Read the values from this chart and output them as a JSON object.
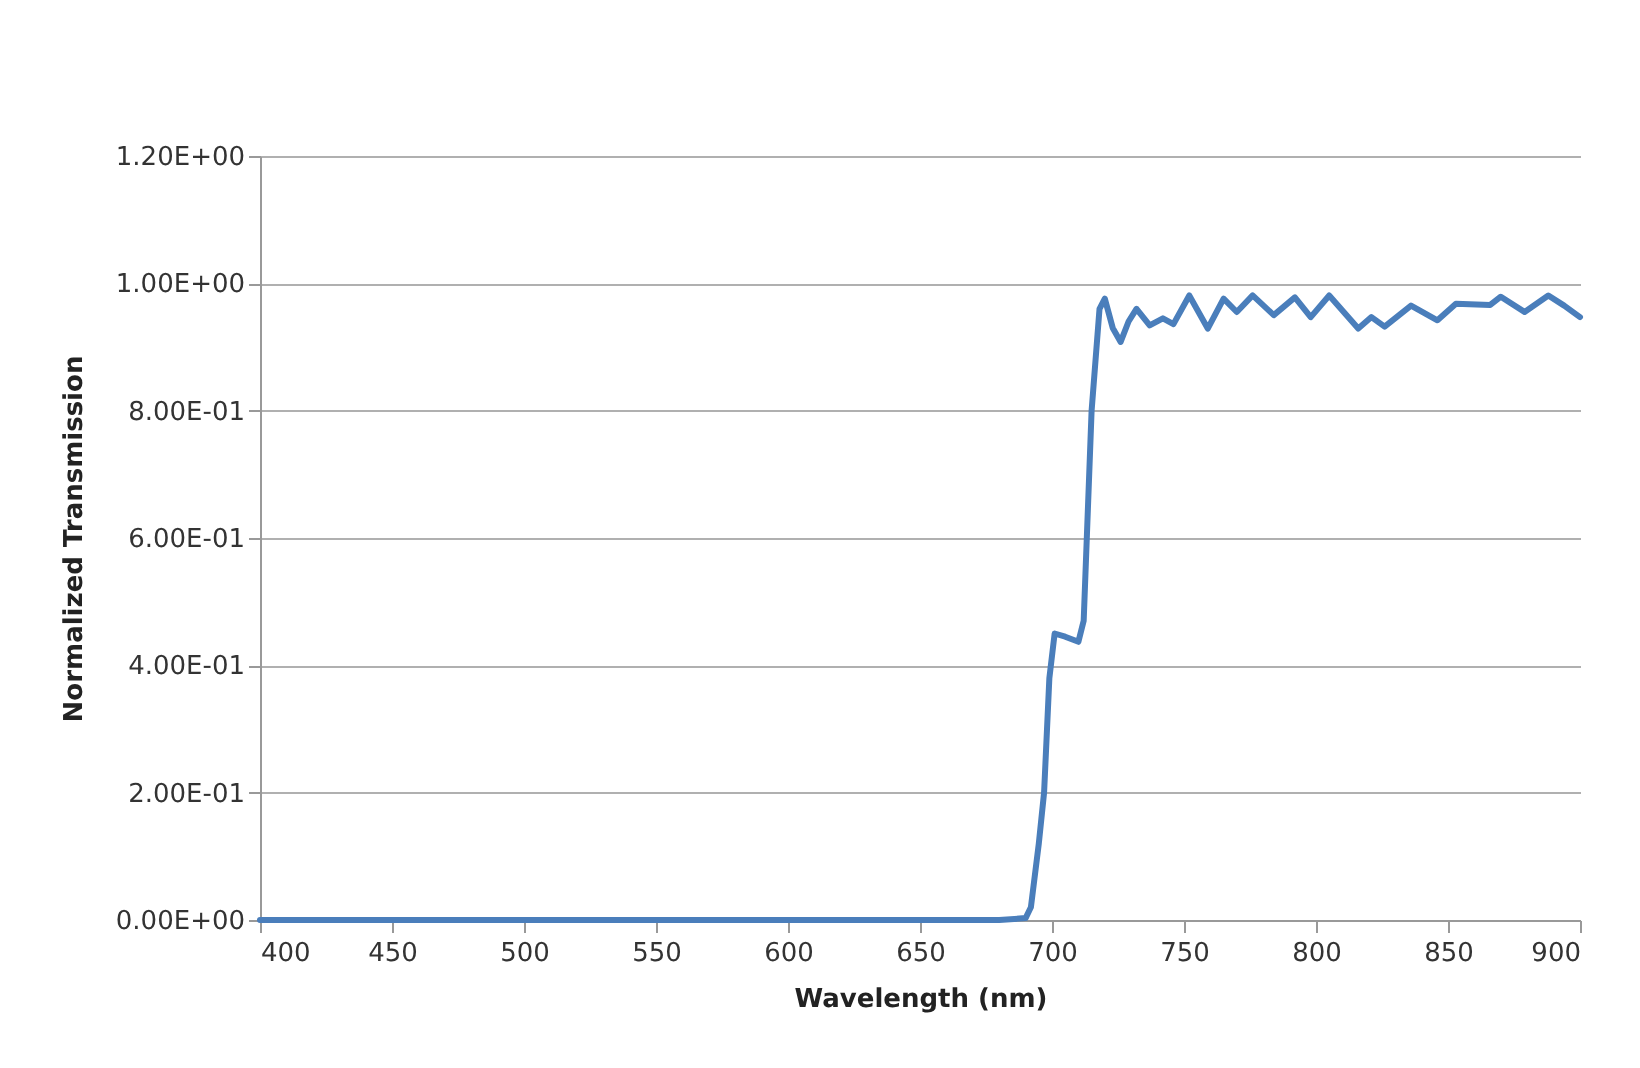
{
  "chart_data": {
    "type": "line",
    "xlabel": "Wavelength (nm)",
    "ylabel": "Normalized Transmission",
    "xlim": [
      400,
      900
    ],
    "xticks": [
      400,
      450,
      500,
      550,
      600,
      650,
      700,
      750,
      800,
      850,
      900
    ],
    "ylim": [
      0,
      1.2
    ],
    "yticks": [
      {
        "value": 0,
        "label": "0.00E+00"
      },
      {
        "value": 0.2,
        "label": "2.00E-01"
      },
      {
        "value": 0.4,
        "label": "4.00E-01"
      },
      {
        "value": 0.6,
        "label": "6.00E-01"
      },
      {
        "value": 0.8,
        "label": "8.00E-01"
      },
      {
        "value": 1,
        "label": "1.00E+00"
      },
      {
        "value": 1.2,
        "label": "1.20E+00"
      }
    ],
    "grid": "y",
    "legend": false,
    "series": [
      {
        "color": "#4a7ebb",
        "x": [
          400,
          500,
          600,
          680,
          690,
          692,
          695,
          697,
          699,
          701,
          705,
          710,
          712,
          715,
          718,
          720,
          723,
          726,
          729,
          732,
          737,
          742,
          746,
          752,
          759,
          765,
          770,
          776,
          784,
          792,
          798,
          805,
          816,
          821,
          826,
          836,
          846,
          853,
          866,
          870,
          879,
          888,
          894,
          900
        ],
        "values": [
          0,
          0,
          0,
          0,
          0.003,
          0.02,
          0.12,
          0.2,
          0.38,
          0.45,
          0.445,
          0.437,
          0.47,
          0.8,
          0.96,
          0.976,
          0.93,
          0.908,
          0.94,
          0.96,
          0.934,
          0.945,
          0.936,
          0.981,
          0.929,
          0.976,
          0.955,
          0.981,
          0.95,
          0.978,
          0.947,
          0.981,
          0.929,
          0.947,
          0.932,
          0.965,
          0.942,
          0.968,
          0.966,
          0.979,
          0.955,
          0.981,
          0.965,
          0.947
        ]
      }
    ]
  }
}
